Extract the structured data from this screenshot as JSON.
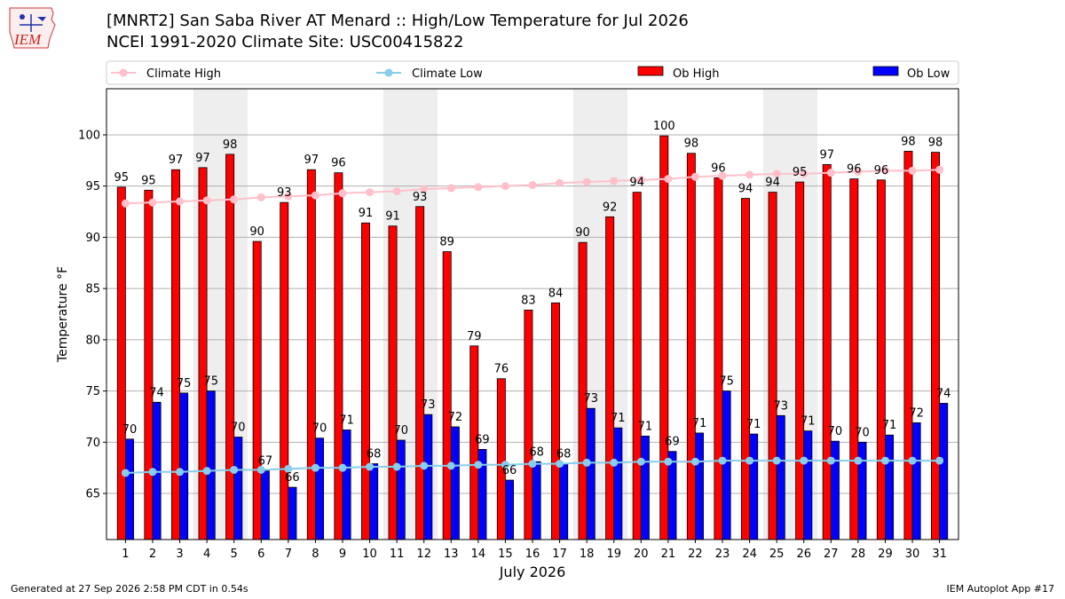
{
  "header": {
    "logo_text": "IEM",
    "title": "[MNRT2] San Saba River  AT Menard :: High/Low Temperature for Jul 2026",
    "subtitle": "NCEI 1991-2020 Climate Site: USC00415822"
  },
  "footer": {
    "generated": "Generated at 27 Sep 2026 2:58 PM CDT in 0.54s",
    "app": "IEM Autoplot App #17"
  },
  "colors": {
    "ob_high": "#ff0000",
    "ob_low": "#0000ff",
    "climate_high": "#ffc0cb",
    "climate_low": "#87ceeb",
    "weekend_shade": "#eeeeee",
    "grid": "#b0b0b0"
  },
  "chart_data": {
    "type": "bar",
    "xlabel": "July 2026",
    "ylabel": "Temperature °F",
    "ylim": [
      60.5,
      104.5
    ],
    "yticks": [
      65,
      70,
      75,
      80,
      85,
      90,
      95,
      100
    ],
    "grid": "horizontal",
    "legend_placement": "top, across plot",
    "categories": [
      "1",
      "2",
      "3",
      "4",
      "5",
      "6",
      "7",
      "8",
      "9",
      "10",
      "11",
      "12",
      "13",
      "14",
      "15",
      "16",
      "17",
      "18",
      "19",
      "20",
      "21",
      "22",
      "23",
      "24",
      "25",
      "26",
      "27",
      "28",
      "29",
      "30",
      "31"
    ],
    "shaded_days": [
      4,
      5,
      11,
      12,
      18,
      19,
      25,
      26
    ],
    "series": [
      {
        "name": "Climate High",
        "kind": "line",
        "values": [
          93.3,
          93.4,
          93.5,
          93.6,
          93.7,
          93.9,
          94.0,
          94.1,
          94.3,
          94.4,
          94.5,
          94.7,
          94.8,
          94.9,
          95.0,
          95.1,
          95.3,
          95.4,
          95.5,
          95.6,
          95.7,
          95.9,
          96.0,
          96.1,
          96.2,
          96.2,
          96.3,
          96.4,
          96.5,
          96.5,
          96.6
        ]
      },
      {
        "name": "Climate Low",
        "kind": "line",
        "values": [
          67.0,
          67.1,
          67.1,
          67.2,
          67.3,
          67.3,
          67.4,
          67.5,
          67.5,
          67.6,
          67.6,
          67.7,
          67.7,
          67.8,
          67.8,
          67.9,
          67.9,
          68.0,
          68.0,
          68.1,
          68.1,
          68.1,
          68.2,
          68.2,
          68.2,
          68.2,
          68.2,
          68.2,
          68.2,
          68.2,
          68.2
        ]
      },
      {
        "name": "Ob High",
        "kind": "bar",
        "values": [
          94.9,
          94.6,
          96.6,
          96.8,
          98.1,
          89.6,
          93.4,
          96.6,
          96.3,
          91.4,
          91.1,
          93.0,
          88.6,
          79.4,
          76.2,
          82.9,
          83.6,
          89.5,
          92.0,
          94.4,
          99.9,
          98.2,
          95.8,
          93.8,
          94.4,
          95.4,
          97.1,
          95.7,
          95.6,
          98.4,
          98.3
        ],
        "labels": [
          "95",
          "95",
          "97",
          "97",
          "98",
          "90",
          "93",
          "97",
          "96",
          "91",
          "91",
          "93",
          "89",
          "79",
          "76",
          "83",
          "84",
          "90",
          "92",
          "94",
          "100",
          "98",
          "96",
          "94",
          "94",
          "95",
          "97",
          "96",
          "96",
          "98",
          "98"
        ]
      },
      {
        "name": "Ob Low",
        "kind": "bar",
        "values": [
          70.3,
          73.9,
          74.8,
          75.0,
          70.5,
          67.2,
          65.6,
          70.4,
          71.2,
          67.9,
          70.2,
          72.7,
          71.5,
          69.3,
          66.3,
          68.1,
          67.9,
          73.3,
          71.4,
          70.6,
          69.1,
          70.9,
          75.0,
          70.8,
          72.6,
          71.1,
          70.1,
          70.0,
          70.7,
          71.9,
          73.8
        ],
        "labels": [
          "70",
          "74",
          "75",
          "75",
          "70",
          "67",
          "66",
          "70",
          "71",
          "68",
          "70",
          "73",
          "72",
          "69",
          "66",
          "68",
          "68",
          "73",
          "71",
          "71",
          "69",
          "71",
          "75",
          "71",
          "73",
          "71",
          "70",
          "70",
          "71",
          "72",
          "74"
        ]
      }
    ]
  }
}
